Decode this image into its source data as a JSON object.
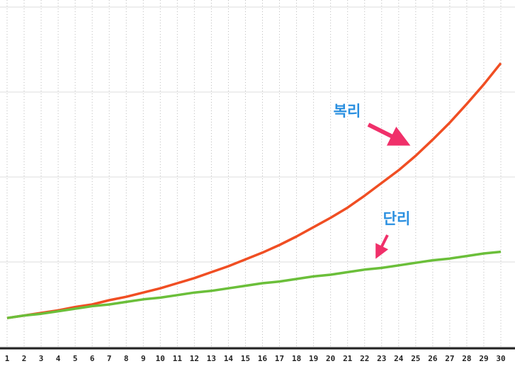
{
  "chart_data": {
    "type": "line",
    "categories": [
      "1",
      "2",
      "3",
      "4",
      "5",
      "6",
      "7",
      "8",
      "9",
      "10",
      "11",
      "12",
      "13",
      "14",
      "15",
      "16",
      "17",
      "18",
      "19",
      "20",
      "21",
      "22",
      "23",
      "24",
      "25",
      "26",
      "27",
      "28",
      "29",
      "30"
    ],
    "series": [
      {
        "name": "복리",
        "color": "#f04e23",
        "values": [
          0.34,
          0.37,
          0.4,
          0.43,
          0.47,
          0.5,
          0.55,
          0.59,
          0.64,
          0.69,
          0.75,
          0.81,
          0.88,
          0.95,
          1.03,
          1.11,
          1.2,
          1.3,
          1.41,
          1.52,
          1.64,
          1.78,
          1.93,
          2.08,
          2.25,
          2.44,
          2.64,
          2.86,
          3.09,
          3.34
        ]
      },
      {
        "name": "단리",
        "color": "#6bbf3a",
        "values": [
          0.34,
          0.37,
          0.39,
          0.42,
          0.45,
          0.48,
          0.5,
          0.53,
          0.56,
          0.58,
          0.61,
          0.64,
          0.66,
          0.69,
          0.72,
          0.75,
          0.77,
          0.8,
          0.83,
          0.85,
          0.88,
          0.91,
          0.93,
          0.96,
          0.99,
          1.02,
          1.04,
          1.07,
          1.1,
          1.12
        ]
      }
    ],
    "ylim": [
      0,
      4
    ],
    "yticks": [
      0,
      1,
      2,
      3,
      4
    ],
    "grid": true
  }
}
